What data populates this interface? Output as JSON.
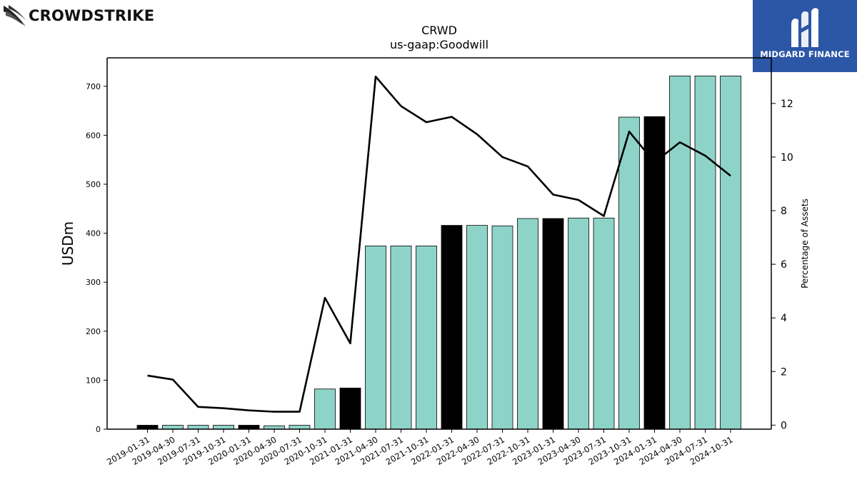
{
  "brands": {
    "left_logo_text": "CROWDSTRIKE",
    "right_logo_text": "MIDGARD FINANCE"
  },
  "colors": {
    "bar_default": "#8ed3c8",
    "bar_highlight": "#000000",
    "line": "#000000",
    "brand_right_bg": "#2c56a6"
  },
  "chart_data": {
    "type": "bar",
    "title": "CRWD",
    "subtitle": "us-gaap:Goodwill",
    "ylabel": "USDm",
    "y2label": "Percentage of Assets",
    "ylim": [
      0,
      758
    ],
    "y2lim": [
      -0.15,
      13.7
    ],
    "yticks": [
      0,
      100,
      200,
      300,
      400,
      500,
      600,
      700
    ],
    "y2ticks": [
      0,
      2,
      4,
      6,
      8,
      10,
      12
    ],
    "grid": false,
    "categories": [
      "2019-01-31",
      "2019-04-30",
      "2019-07-31",
      "2019-10-31",
      "2020-01-31",
      "2020-04-30",
      "2020-07-31",
      "2020-10-31",
      "2021-01-31",
      "2021-04-30",
      "2021-07-31",
      "2021-10-31",
      "2022-01-31",
      "2022-04-30",
      "2022-07-31",
      "2022-10-31",
      "2023-01-31",
      "2023-04-30",
      "2023-07-31",
      "2023-10-31",
      "2024-01-31",
      "2024-04-30",
      "2024-07-31",
      "2024-10-31"
    ],
    "series": [
      {
        "kind": "bar",
        "axis": "left",
        "values": [
          8.0,
          8.0,
          8.0,
          8.0,
          8.0,
          7.0,
          8.0,
          82.0,
          84.0,
          374.0,
          374.0,
          374.0,
          416.0,
          416.0,
          415.0,
          430.0,
          430.0,
          431.0,
          431.0,
          637.0,
          638.0,
          721.0,
          721.0,
          721.0
        ],
        "highlight": [
          true,
          false,
          false,
          false,
          true,
          false,
          false,
          false,
          true,
          false,
          false,
          false,
          true,
          false,
          false,
          false,
          true,
          false,
          false,
          false,
          true,
          false,
          false,
          false
        ]
      },
      {
        "kind": "line",
        "axis": "right",
        "values": [
          1.85,
          1.7,
          0.68,
          0.63,
          0.55,
          0.5,
          0.5,
          4.75,
          3.05,
          13.0,
          11.9,
          11.3,
          11.5,
          10.85,
          10.0,
          9.65,
          8.6,
          8.4,
          7.8,
          10.95,
          9.8,
          10.55,
          10.05,
          9.3
        ]
      }
    ]
  }
}
